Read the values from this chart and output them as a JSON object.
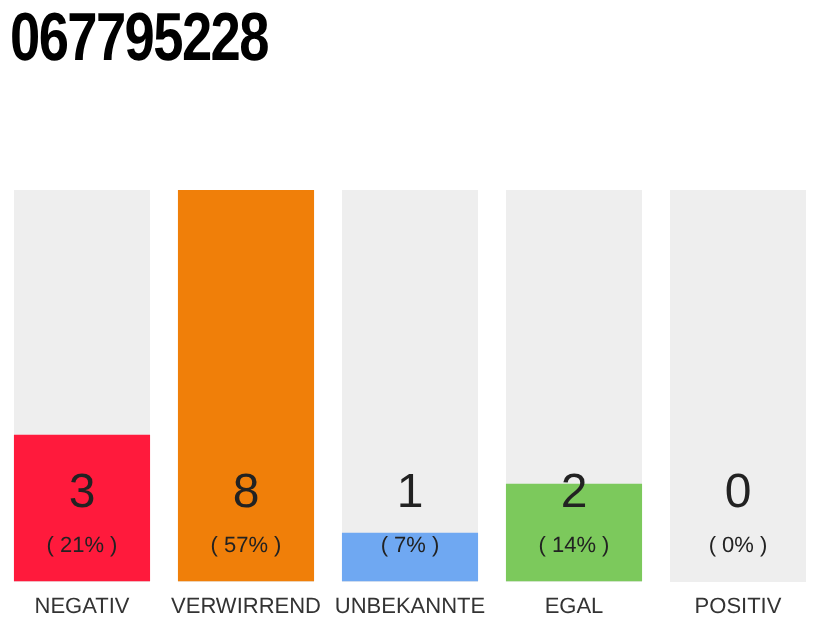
{
  "chart_data": {
    "type": "bar",
    "title": "067795228",
    "categories": [
      "NEGATIV",
      "VERWIRREND",
      "UNBEKANNTE",
      "EGAL",
      "POSITIV"
    ],
    "values": [
      3,
      8,
      1,
      2,
      0
    ],
    "colors": [
      "#ff1a3c",
      "#f07f09",
      "#6fa8f2",
      "#7cc95c",
      "#e0e0e0"
    ],
    "value_labels": [
      "3\n( 21% )",
      "8\n( 57% )",
      "1\n( 7% )",
      "2\n( 14% )",
      "0\n( 0% )"
    ],
    "ylim": [
      0,
      8
    ],
    "tick_labels": "x",
    "grid": false,
    "legend": false
  }
}
